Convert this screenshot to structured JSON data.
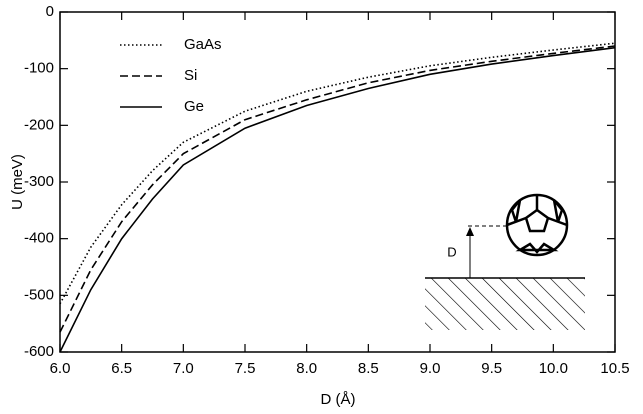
{
  "chart_data": {
    "type": "line",
    "xlabel": "D (Å)",
    "ylabel": "U (meV)",
    "x": [
      6.0,
      6.25,
      6.5,
      6.75,
      7.0,
      7.5,
      8.0,
      8.5,
      9.0,
      9.5,
      10.0,
      10.5
    ],
    "series": [
      {
        "name": "GaAs",
        "color": "#000000",
        "dash": "dotted",
        "values": [
          -515,
          -415,
          -340,
          -280,
          -230,
          -175,
          -140,
          -115,
          -95,
          -80,
          -67,
          -55
        ]
      },
      {
        "name": "Si",
        "color": "#000000",
        "dash": "dashed",
        "values": [
          -565,
          -455,
          -370,
          -305,
          -250,
          -190,
          -155,
          -125,
          -103,
          -87,
          -73,
          -60
        ]
      },
      {
        "name": "Ge",
        "color": "#000000",
        "dash": "solid",
        "values": [
          -600,
          -490,
          -400,
          -330,
          -270,
          -205,
          -165,
          -135,
          -110,
          -92,
          -77,
          -63
        ]
      }
    ],
    "xlim": [
      6.0,
      10.5
    ],
    "xticks": [
      {
        "value": 6.0,
        "label": "6.0"
      },
      6.5,
      {
        "value": 7.0,
        "label": "7.0"
      },
      7.5,
      {
        "value": 8.0,
        "label": "8.0"
      },
      8.5,
      {
        "value": 9.0,
        "label": "9.0"
      },
      9.5,
      {
        "value": 10.0,
        "label": "10.0"
      },
      10.5
    ],
    "ylim": [
      -600,
      0
    ],
    "yticks": [
      0,
      -100,
      -200,
      -300,
      -400,
      -500,
      -600
    ],
    "grid": false,
    "legend": "upper left",
    "inset_label": "D"
  }
}
